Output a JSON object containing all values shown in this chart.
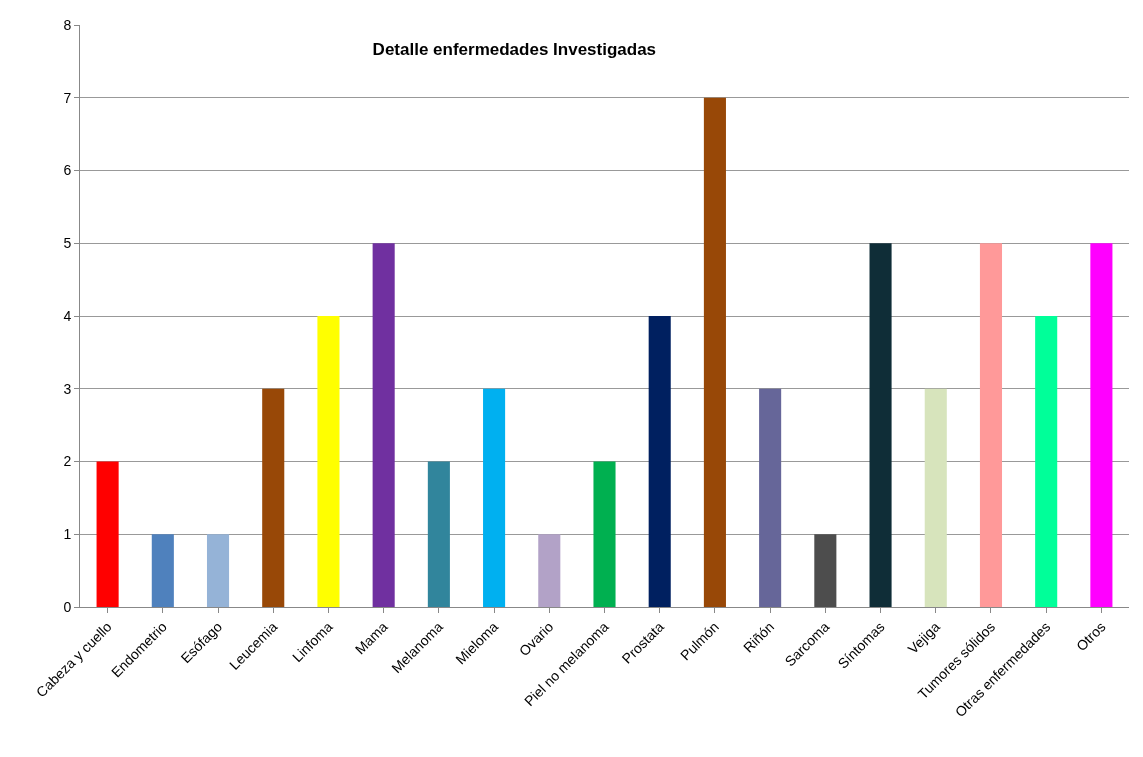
{
  "chart_data": {
    "type": "bar",
    "title": "Detalle enfermedades Investigadas",
    "categories": [
      "Cabeza y cuello",
      "Endometrio",
      "Esófago",
      "Leucemia",
      "Linfoma",
      "Mama",
      "Melanoma",
      "Mieloma",
      "Ovario",
      "Piel no melanoma",
      "Prostata",
      "Pulmón",
      "Riñón",
      "Sarcoma",
      "Síntomas",
      "Vejiga",
      "Tumores sólidos",
      "Otras enfermedades",
      "Otros"
    ],
    "values": [
      2,
      1,
      1,
      3,
      4,
      5,
      2,
      3,
      1,
      2,
      4,
      7,
      3,
      1,
      5,
      3,
      5,
      4,
      5
    ],
    "colors": [
      "#ff0000",
      "#4f81bd",
      "#95b3d7",
      "#984807",
      "#ffff00",
      "#7030a0",
      "#31859c",
      "#00b0f0",
      "#b2a2c7",
      "#00b050",
      "#002060",
      "#984807",
      "#666699",
      "#4d4d4d",
      "#0f2d37",
      "#d7e4bc",
      "#ff9999",
      "#00ff99",
      "#ff00ff"
    ],
    "ylim": [
      0,
      8
    ],
    "yticks": [
      0,
      1,
      2,
      3,
      4,
      5,
      6,
      7,
      8
    ],
    "grid": "y"
  }
}
